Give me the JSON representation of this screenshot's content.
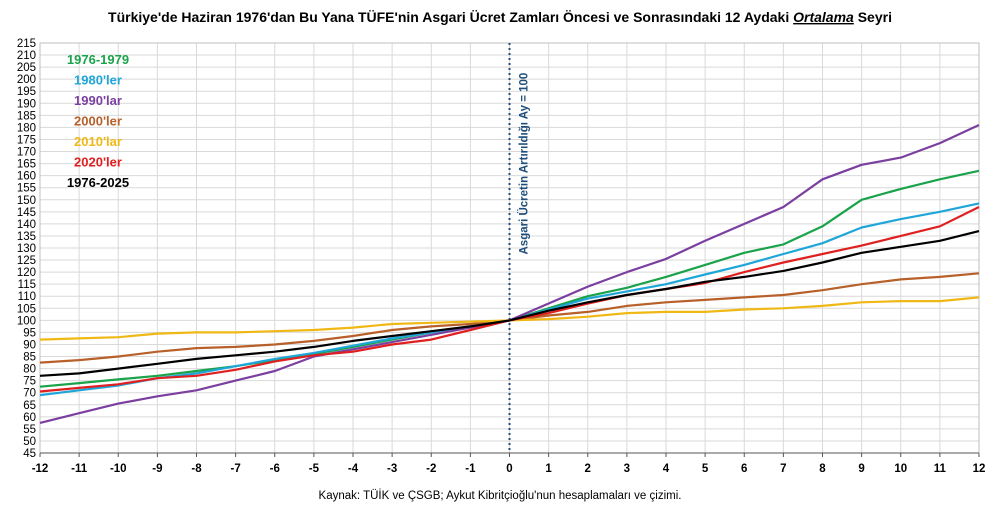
{
  "chart_data": {
    "type": "line",
    "title_parts": {
      "before": "Türkiye'de Haziran 1976'dan Bu Yana TÜFE'nin Asgari Ücret Zamları Öncesi ve Sonrasındaki 12 Aydaki ",
      "italic": "Ortalama",
      "after": " Seyri"
    },
    "source": "Kaynak: TÜİK ve ÇSGB; Aykut Kibritçioğlu'nun hesaplamaları ve çizimi.",
    "annotation": "Asgari Ücretin Artırıldığı Ay = 100",
    "x": [
      -12,
      -11,
      -10,
      -9,
      -8,
      -7,
      -6,
      -5,
      -4,
      -3,
      -2,
      -1,
      0,
      1,
      2,
      3,
      4,
      5,
      6,
      7,
      8,
      9,
      10,
      11,
      12
    ],
    "xlim": [
      -12,
      12
    ],
    "ylim": [
      45,
      215
    ],
    "ytick_step": 5,
    "grid": true,
    "legend_position": "top-left",
    "series": [
      {
        "name": "1976-1979",
        "color": "#1aa34a",
        "values": [
          72.5,
          74,
          75.5,
          77,
          79,
          81,
          83.5,
          86,
          89,
          92,
          95,
          97.5,
          100,
          105,
          110,
          113.5,
          118,
          123,
          128,
          131.5,
          139,
          150,
          154.5,
          158.5,
          162
        ]
      },
      {
        "name": "1980'ler",
        "color": "#1fa6d9",
        "values": [
          69,
          71,
          73,
          76,
          78,
          81,
          84,
          86.5,
          89.5,
          92.5,
          95,
          97.5,
          100,
          104.5,
          109,
          112,
          115,
          119,
          123,
          127.5,
          132,
          138.5,
          142,
          145,
          148.5
        ]
      },
      {
        "name": "1990'lar",
        "color": "#7b3fa0",
        "values": [
          57.5,
          61.5,
          65.5,
          68.5,
          71,
          75,
          79,
          85,
          88,
          91,
          94,
          97,
          100,
          107,
          114,
          120,
          125.5,
          133,
          140,
          147,
          158.5,
          164.5,
          167.5,
          173.5,
          181
        ]
      },
      {
        "name": "2000'ler",
        "color": "#b8602a",
        "values": [
          82.5,
          83.5,
          85,
          87,
          88.5,
          89,
          90,
          91.5,
          93.5,
          96,
          97.5,
          98.5,
          100,
          102,
          103.5,
          106,
          107.5,
          108.5,
          109.5,
          110.5,
          112.5,
          115,
          117,
          118,
          119.5
        ]
      },
      {
        "name": "2010'lar",
        "color": "#f0b815",
        "values": [
          92,
          92.5,
          93,
          94.5,
          95,
          95,
          95.5,
          96,
          97,
          98.5,
          99,
          99.5,
          100,
          100.5,
          101.5,
          103,
          103.5,
          103.5,
          104.5,
          105,
          106,
          107.5,
          108,
          108,
          109.5
        ]
      },
      {
        "name": "2020'ler",
        "color": "#e02020",
        "values": [
          70.5,
          72,
          73.5,
          76,
          77,
          79.5,
          83,
          85.5,
          87,
          90,
          92,
          96,
          100,
          103,
          107,
          110.5,
          113,
          115.5,
          120,
          124,
          127.5,
          131,
          135,
          139,
          147
        ]
      },
      {
        "name": "1976-2025",
        "color": "#000000",
        "values": [
          77,
          78,
          80,
          82,
          84,
          85.5,
          87,
          89,
          91.5,
          93.5,
          95.5,
          97.5,
          100,
          104,
          107.5,
          110.5,
          113,
          116,
          118,
          120.5,
          124,
          128,
          130.5,
          133,
          137
        ]
      }
    ]
  }
}
